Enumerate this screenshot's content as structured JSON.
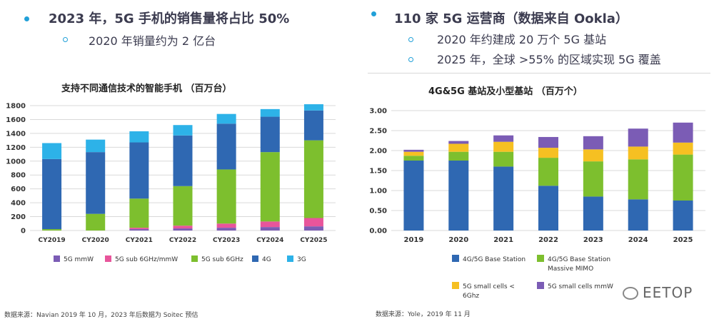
{
  "left_bullets": {
    "main": "2023 年，5G 手机的销售量将占比 50%",
    "sub": "2020 年销量约为 2 亿台"
  },
  "right_bullets": {
    "main": "110 家 5G 运营商（数据来自 Ookla）",
    "sub1": "2020 年约建成 20 万个 5G 基站",
    "sub2": "2025 年，全球 >55% 的区域实现 5G 覆盖"
  },
  "sources": {
    "left": "数据来源：Navian 2019 年 10 月，2023 年后数据为 Soitec 预估",
    "right": "数据来源：Yole，2019 年 11 月"
  },
  "watermark": "EETOP",
  "chart_data": [
    {
      "type": "bar",
      "stacked": true,
      "title": "支持不同通信技术的智能手机 （百万台）",
      "categories": [
        "CY2019",
        "CY2020",
        "CY2021",
        "CY2022",
        "CY2023",
        "CY2024",
        "CY2025"
      ],
      "ylim": [
        0,
        1800
      ],
      "yticks": [
        0,
        200,
        400,
        600,
        800,
        1000,
        1200,
        1400,
        1600,
        1800
      ],
      "grid": true,
      "legend_position": "bottom",
      "series": [
        {
          "name": "5G mmW",
          "color": "#7b5cb5",
          "values": [
            0,
            0,
            20,
            30,
            40,
            50,
            60
          ]
        },
        {
          "name": "5G sub 6GHz/mmW",
          "color": "#e8559b",
          "values": [
            0,
            0,
            20,
            40,
            60,
            80,
            120
          ]
        },
        {
          "name": "5G sub 6GHz",
          "color": "#7dbf2e",
          "values": [
            20,
            240,
            420,
            570,
            780,
            1000,
            1120
          ]
        },
        {
          "name": "4G",
          "color": "#2f68b2",
          "values": [
            1010,
            890,
            810,
            730,
            660,
            510,
            430
          ]
        },
        {
          "name": "3G",
          "color": "#2db2e8",
          "values": [
            230,
            180,
            160,
            150,
            140,
            110,
            90
          ]
        }
      ]
    },
    {
      "type": "bar",
      "stacked": true,
      "title": "4G&5G 基站及小型基站 （百万个）",
      "categories": [
        "2019",
        "2020",
        "2021",
        "2022",
        "2023",
        "2024",
        "2025"
      ],
      "ylim": [
        0,
        3.0
      ],
      "yticks": [
        "0.00",
        "0.50",
        "1.00",
        "1.50",
        "2.00",
        "2.50",
        "3.00"
      ],
      "grid": true,
      "legend_position": "bottom",
      "series": [
        {
          "name": "4G/5G Base Station",
          "color": "#2f68b2",
          "values": [
            1.75,
            1.75,
            1.6,
            1.12,
            0.85,
            0.78,
            0.75
          ]
        },
        {
          "name": "4G/5G Base Station Massive MIMO",
          "color": "#7dbf2e",
          "values": [
            0.12,
            0.22,
            0.37,
            0.7,
            0.88,
            1.0,
            1.15
          ]
        },
        {
          "name": "5G small cells < 6Ghz",
          "color": "#f6c022",
          "values": [
            0.1,
            0.2,
            0.25,
            0.25,
            0.3,
            0.32,
            0.3
          ]
        },
        {
          "name": "5G small cells mmW",
          "color": "#7b5cb5",
          "values": [
            0.05,
            0.07,
            0.16,
            0.27,
            0.33,
            0.45,
            0.5
          ]
        }
      ]
    }
  ]
}
